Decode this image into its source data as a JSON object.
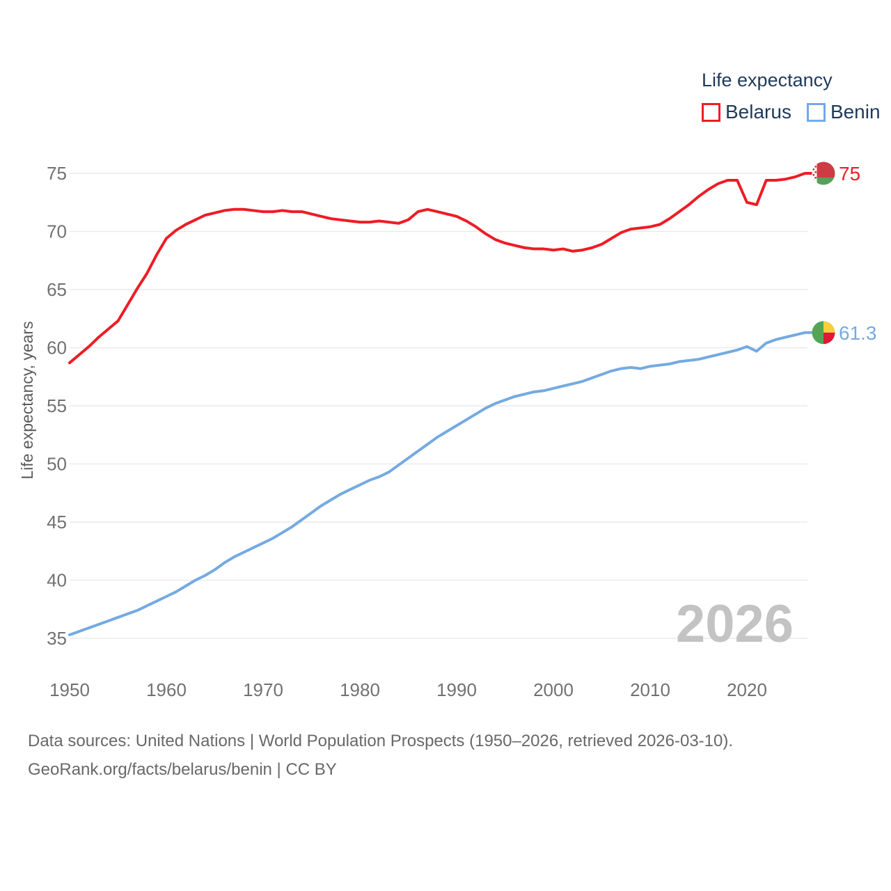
{
  "legend": {
    "title": "Life expectancy",
    "items": [
      {
        "label": "Belarus",
        "color": "#ee1c25"
      },
      {
        "label": "Benin",
        "color": "#74aae1"
      }
    ]
  },
  "watermark": "2026",
  "footer": {
    "line1": "Data sources: United Nations | World Population Prospects (1950–2026, retrieved 2026-03-10).",
    "line2": "GeoRank.org/facts/belarus/benin | CC BY"
  },
  "chart_data": {
    "type": "line",
    "title": "Life expectancy",
    "xlabel": "",
    "ylabel": "Life expectancy, years",
    "xlim": [
      1950,
      2026
    ],
    "ylim": [
      35,
      75
    ],
    "xticks": [
      1950,
      1960,
      1970,
      1980,
      1990,
      2000,
      2010,
      2020
    ],
    "yticks": [
      35,
      40,
      45,
      50,
      55,
      60,
      65,
      70,
      75
    ],
    "grid": "horizontal",
    "legend_position": "top-right",
    "x": [
      1950,
      1951,
      1952,
      1953,
      1954,
      1955,
      1956,
      1957,
      1958,
      1959,
      1960,
      1961,
      1962,
      1963,
      1964,
      1965,
      1966,
      1967,
      1968,
      1969,
      1970,
      1971,
      1972,
      1973,
      1974,
      1975,
      1976,
      1977,
      1978,
      1979,
      1980,
      1981,
      1982,
      1983,
      1984,
      1985,
      1986,
      1987,
      1988,
      1989,
      1990,
      1991,
      1992,
      1993,
      1994,
      1995,
      1996,
      1997,
      1998,
      1999,
      2000,
      2001,
      2002,
      2003,
      2004,
      2005,
      2006,
      2007,
      2008,
      2009,
      2010,
      2011,
      2012,
      2013,
      2014,
      2015,
      2016,
      2017,
      2018,
      2019,
      2020,
      2021,
      2022,
      2023,
      2024,
      2025,
      2026
    ],
    "series": [
      {
        "name": "Belarus",
        "color": "#ee1c25",
        "end_value": 75,
        "end_label": "75",
        "values": [
          58.7,
          59.4,
          60.1,
          60.9,
          61.6,
          62.3,
          63.7,
          65.1,
          66.4,
          68.0,
          69.4,
          70.1,
          70.6,
          71.0,
          71.4,
          71.6,
          71.8,
          71.9,
          71.9,
          71.8,
          71.7,
          71.7,
          71.8,
          71.7,
          71.7,
          71.5,
          71.3,
          71.1,
          71.0,
          70.9,
          70.8,
          70.8,
          70.9,
          70.8,
          70.7,
          71.0,
          71.7,
          71.9,
          71.7,
          71.5,
          71.3,
          70.9,
          70.4,
          69.8,
          69.3,
          69.0,
          68.8,
          68.6,
          68.5,
          68.5,
          68.4,
          68.5,
          68.3,
          68.4,
          68.6,
          68.9,
          69.4,
          69.9,
          70.2,
          70.3,
          70.4,
          70.6,
          71.1,
          71.7,
          72.3,
          73.0,
          73.6,
          74.1,
          74.4,
          74.4,
          72.5,
          72.3,
          74.4,
          74.4,
          74.5,
          74.7,
          75.0
        ]
      },
      {
        "name": "Benin",
        "color": "#74aae1",
        "end_value": 61.3,
        "end_label": "61.3",
        "values": [
          35.3,
          35.6,
          35.9,
          36.2,
          36.5,
          36.8,
          37.1,
          37.4,
          37.8,
          38.2,
          38.6,
          39.0,
          39.5,
          40.0,
          40.4,
          40.9,
          41.5,
          42.0,
          42.4,
          42.8,
          43.2,
          43.6,
          44.1,
          44.6,
          45.2,
          45.8,
          46.4,
          46.9,
          47.4,
          47.8,
          48.2,
          48.6,
          48.9,
          49.3,
          49.9,
          50.5,
          51.1,
          51.7,
          52.3,
          52.8,
          53.3,
          53.8,
          54.3,
          54.8,
          55.2,
          55.5,
          55.8,
          56.0,
          56.2,
          56.3,
          56.5,
          56.7,
          56.9,
          57.1,
          57.4,
          57.7,
          58.0,
          58.2,
          58.3,
          58.2,
          58.4,
          58.5,
          58.6,
          58.8,
          58.9,
          59.0,
          59.2,
          59.4,
          59.6,
          59.8,
          60.1,
          59.7,
          60.4,
          60.7,
          60.9,
          61.1,
          61.3
        ]
      }
    ]
  },
  "flags": {
    "belarus": {
      "red": "#cf3b44",
      "green": "#55a159",
      "white": "#ffffff"
    },
    "benin": {
      "green": "#55a455",
      "yellow": "#f8d03e",
      "red": "#e01935"
    }
  }
}
